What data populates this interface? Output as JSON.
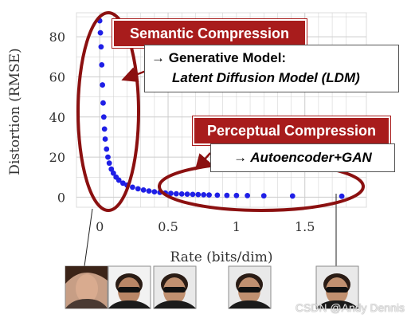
{
  "chart_data": {
    "type": "scatter",
    "xlabel": "Rate (bits/dim)",
    "ylabel": "Distortion (RMSE)",
    "xlim": [
      -0.17,
      1.95
    ],
    "ylim": [
      -5,
      92
    ],
    "xticks": [
      0,
      0.5,
      1,
      1.5
    ],
    "xtick_labels": [
      "0",
      "0.5",
      "1",
      "1.5"
    ],
    "yticks": [
      0,
      20,
      40,
      60,
      80
    ],
    "ytick_labels": [
      "0",
      "20",
      "40",
      "60",
      "80"
    ],
    "grid": true,
    "series": [
      {
        "points": [
          [
            0.0,
            88
          ],
          [
            0.005,
            82
          ],
          [
            0.01,
            75
          ],
          [
            0.015,
            66
          ],
          [
            0.02,
            56
          ],
          [
            0.025,
            47
          ],
          [
            0.03,
            40
          ],
          [
            0.035,
            34
          ],
          [
            0.04,
            29
          ],
          [
            0.05,
            24
          ],
          [
            0.06,
            20
          ],
          [
            0.07,
            17
          ],
          [
            0.085,
            14
          ],
          [
            0.1,
            12
          ],
          [
            0.12,
            10
          ],
          [
            0.14,
            8.5
          ],
          [
            0.17,
            7
          ],
          [
            0.2,
            6
          ],
          [
            0.24,
            5
          ],
          [
            0.28,
            4.2
          ],
          [
            0.32,
            3.6
          ],
          [
            0.36,
            3.1
          ],
          [
            0.4,
            2.7
          ],
          [
            0.44,
            2.4
          ],
          [
            0.48,
            2.1
          ],
          [
            0.52,
            1.9
          ],
          [
            0.56,
            1.7
          ],
          [
            0.6,
            1.6
          ],
          [
            0.64,
            1.5
          ],
          [
            0.68,
            1.4
          ],
          [
            0.72,
            1.3
          ],
          [
            0.76,
            1.2
          ],
          [
            0.8,
            1.1
          ],
          [
            0.86,
            1.0
          ],
          [
            0.93,
            0.9
          ],
          [
            1.0,
            0.85
          ],
          [
            1.08,
            0.8
          ],
          [
            1.2,
            0.7
          ],
          [
            1.41,
            0.6
          ],
          [
            1.77,
            0.5
          ]
        ]
      }
    ]
  },
  "annotations": {
    "semantic": "Semantic Compression",
    "generative_line1": "→ Generative Model:",
    "generative_line2": "Latent Diffusion Model (LDM)",
    "perceptual": "Perceptual Compression",
    "autoencoder": "→ Autoencoder+GAN"
  },
  "watermark": "CSDN @Andy Dennis",
  "colors": {
    "points": "#1f1fe6",
    "ellipse": "#8b1010",
    "label_bg": "#a81c1c",
    "label_text": "#ffffff",
    "grid": "#cccccc"
  }
}
